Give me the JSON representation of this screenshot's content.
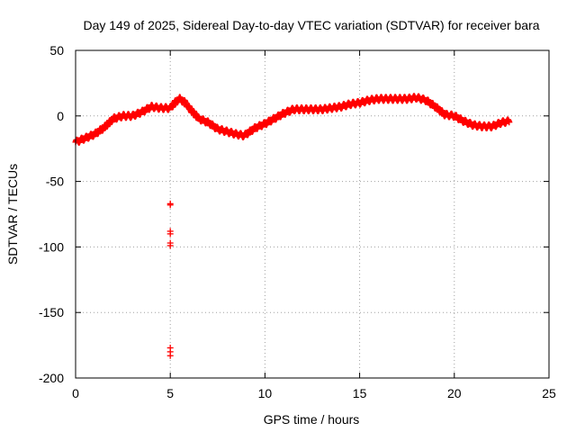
{
  "chart_data": {
    "type": "scatter",
    "title": "Day 149 of 2025, Sidereal Day-to-day VTEC variation (SDTVAR) for receiver bara",
    "xlabel": "GPS time / hours",
    "ylabel": "SDTVAR / TECUs",
    "xlim": [
      0,
      25
    ],
    "ylim": [
      -200,
      50
    ],
    "xticks": [
      0,
      5,
      10,
      15,
      20,
      25
    ],
    "yticks": [
      -200,
      -150,
      -100,
      -50,
      0,
      50
    ],
    "xtick_labels": [
      "0",
      "5",
      "10",
      "15",
      "20",
      "25"
    ],
    "ytick_labels": [
      "-200",
      "-150",
      "-100",
      "-50",
      "0",
      "50"
    ],
    "grid": true,
    "marker": "+",
    "series": [
      {
        "name": "SDTVAR",
        "color": "#ff0000",
        "trend_x": [
          0,
          0.5,
          1.0,
          1.5,
          2.0,
          2.5,
          3.0,
          3.5,
          4.0,
          4.5,
          5.0,
          5.3,
          5.5,
          5.8,
          6.0,
          6.5,
          7.0,
          7.5,
          8.0,
          8.5,
          8.9,
          9.5,
          10.0,
          10.5,
          11.0,
          11.5,
          12.0,
          12.5,
          13.0,
          13.5,
          14.0,
          14.5,
          15.0,
          15.5,
          16.0,
          16.5,
          17.0,
          17.5,
          18.0,
          18.5,
          19.0,
          19.5,
          20.0,
          20.5,
          21.0,
          21.5,
          22.0,
          22.5,
          22.9
        ],
        "trend_y": [
          -20,
          -17,
          -14,
          -9,
          -2,
          0,
          0,
          3,
          7,
          6,
          6,
          11,
          13,
          10,
          6,
          -2,
          -5,
          -10,
          -12,
          -14,
          -15,
          -9,
          -6,
          -2,
          2,
          5,
          5,
          5,
          5,
          6,
          7,
          9,
          10,
          12,
          13,
          13,
          13,
          13,
          14,
          12,
          7,
          1,
          0,
          -4,
          -7,
          -8,
          -8,
          -5,
          -4
        ],
        "outliers": [
          {
            "x": 5.0,
            "y": -67
          },
          {
            "x": 5.0,
            "y": -68
          },
          {
            "x": 5.0,
            "y": -88
          },
          {
            "x": 5.0,
            "y": -90
          },
          {
            "x": 5.0,
            "y": -97
          },
          {
            "x": 5.0,
            "y": -99
          },
          {
            "x": 5.0,
            "y": -177
          },
          {
            "x": 5.0,
            "y": -180
          },
          {
            "x": 5.0,
            "y": -183
          }
        ]
      }
    ]
  }
}
